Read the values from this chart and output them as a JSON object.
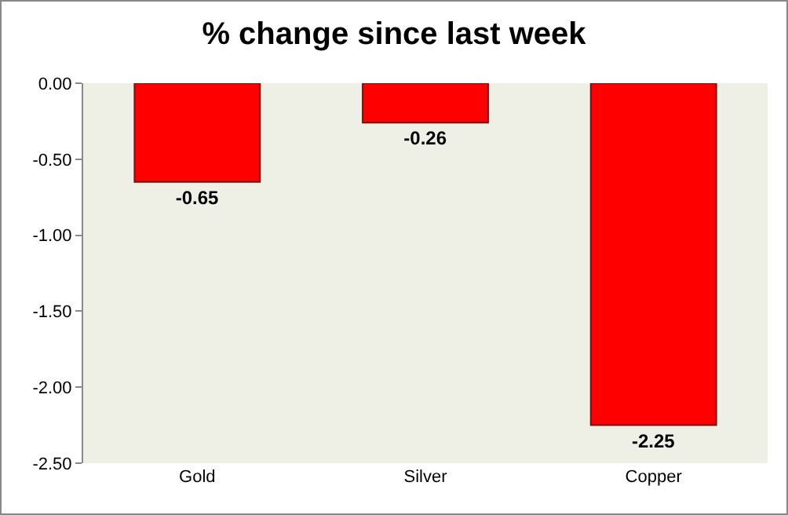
{
  "chart_data": {
    "type": "bar",
    "title": "% change since last week",
    "categories": [
      "Gold",
      "Silver",
      "Copper"
    ],
    "values": [
      -0.65,
      -0.26,
      -2.25
    ],
    "color": "#ff0000",
    "ylim": [
      -2.5,
      0
    ],
    "yticks": [
      {
        "value": -2.5,
        "label": "-2.50"
      },
      {
        "value": -2,
        "label": "-2.00"
      },
      {
        "value": -1.5,
        "label": "-1.50"
      },
      {
        "value": -1,
        "label": "-1.00"
      },
      {
        "value": -0.5,
        "label": "-0.50"
      },
      {
        "value": 0,
        "label": "0.00"
      }
    ],
    "data_labels": true,
    "grid": false
  }
}
